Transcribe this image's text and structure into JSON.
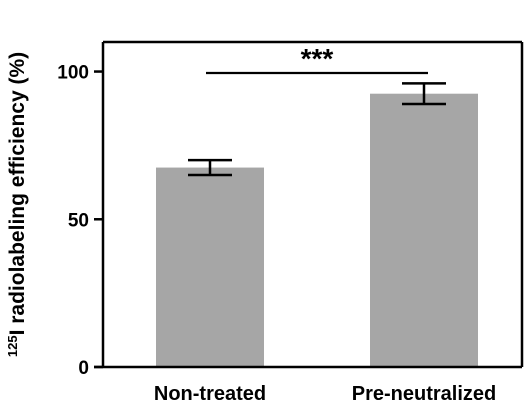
{
  "chart_data": {
    "type": "bar",
    "title": "",
    "xlabel": "",
    "ylabel": {
      "superscript": "125",
      "text": "I radiolabeling efficiency (%)"
    },
    "categories": [
      "Non-treated",
      "Pre-neutralized"
    ],
    "values": [
      67.5,
      92.5
    ],
    "errors": [
      2.5,
      3.5
    ],
    "ylim": [
      0,
      110
    ],
    "yticks": [
      0,
      50,
      100
    ],
    "ytick_labels": [
      "0",
      "50",
      "100"
    ],
    "significance": {
      "label": "***",
      "between": [
        0,
        1
      ]
    },
    "colors": {
      "bar": "#a6a6a6",
      "axis": "#000000",
      "error": "#000000"
    },
    "grid": false,
    "legend": "none"
  }
}
